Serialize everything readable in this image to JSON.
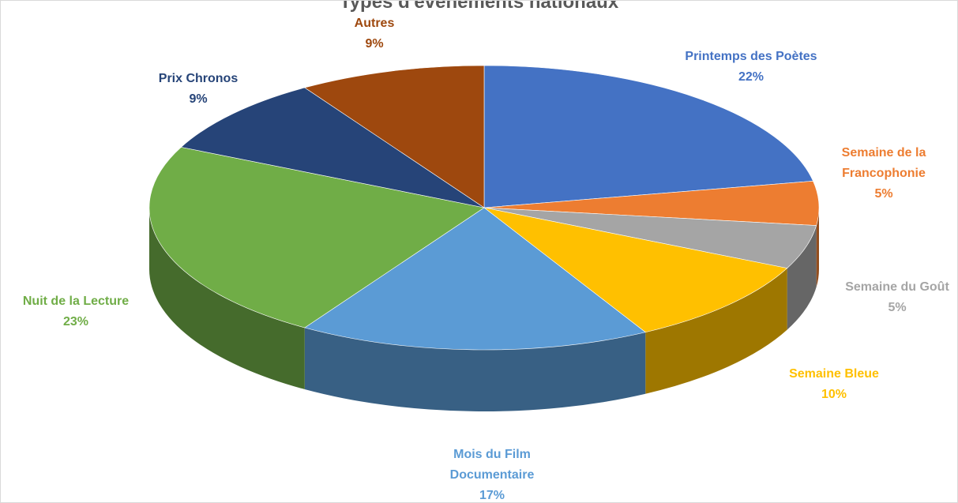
{
  "chart_data": {
    "type": "pie3d",
    "title": "Types d'évènements nationaux",
    "categories": [
      "Printemps des Poètes",
      "Semaine de la Francophonie",
      "Semaine du Goût",
      "Semaine Bleue",
      "Mois du Film Documentaire",
      "Nuit de la Lecture",
      "Prix Chronos",
      "Autres"
    ],
    "values": [
      22,
      5,
      5,
      10,
      17,
      23,
      9,
      9
    ],
    "value_labels": [
      "22%",
      "5%",
      "5%",
      "10%",
      "17%",
      "23%",
      "9%",
      "9%"
    ],
    "colors": [
      "#4472c4",
      "#ed7d31",
      "#a5a5a5",
      "#ffc000",
      "#5b9bd5",
      "#70ad47",
      "#264478",
      "#9e480e"
    ]
  }
}
